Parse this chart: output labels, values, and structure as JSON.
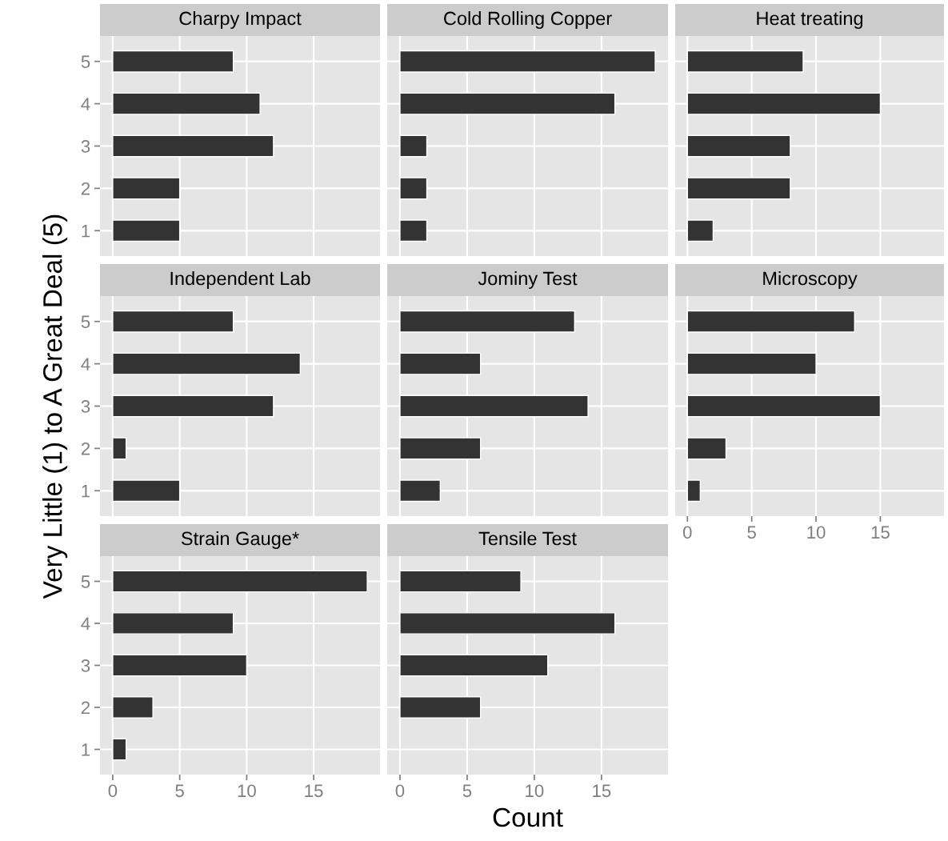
{
  "chart_data": [
    {
      "type": "bar",
      "orientation": "horizontal",
      "title": "Charpy Impact",
      "categories": [
        "5",
        "4",
        "3",
        "2",
        "1"
      ],
      "values": [
        9,
        11,
        12,
        5,
        5
      ],
      "color": "#333333",
      "xlim": [
        -0.95,
        19.95
      ],
      "xticks": [
        0,
        5,
        10,
        15
      ],
      "grid": true,
      "tick_labels": "y"
    },
    {
      "type": "bar",
      "orientation": "horizontal",
      "title": "Cold Rolling Copper",
      "categories": [
        "5",
        "4",
        "3",
        "2",
        "1"
      ],
      "values": [
        19,
        16,
        2,
        2,
        2
      ],
      "color": "#333333",
      "xlim": [
        -0.95,
        19.95
      ],
      "xticks": [
        0,
        5,
        10,
        15
      ],
      "grid": true,
      "tick_labels": false
    },
    {
      "type": "bar",
      "orientation": "horizontal",
      "title": "Heat treating",
      "categories": [
        "5",
        "4",
        "3",
        "2",
        "1"
      ],
      "values": [
        9,
        15,
        8,
        8,
        2
      ],
      "color": "#333333",
      "xlim": [
        -0.95,
        19.95
      ],
      "xticks": [
        0,
        5,
        10,
        15
      ],
      "grid": true,
      "tick_labels": false
    },
    {
      "type": "bar",
      "orientation": "horizontal",
      "title": "Independent Lab",
      "ylabel": "Very Little (1) to A Great Deal (5)",
      "categories": [
        "5",
        "4",
        "3",
        "2",
        "1"
      ],
      "values": [
        9,
        14,
        12,
        1,
        5
      ],
      "color": "#333333",
      "xlim": [
        -0.95,
        19.95
      ],
      "xticks": [
        0,
        5,
        10,
        15
      ],
      "grid": true,
      "tick_labels": "y"
    },
    {
      "type": "bar",
      "orientation": "horizontal",
      "title": "Jominy Test",
      "categories": [
        "5",
        "4",
        "3",
        "2",
        "1"
      ],
      "values": [
        13,
        6,
        14,
        6,
        3
      ],
      "color": "#333333",
      "xlim": [
        -0.95,
        19.95
      ],
      "xticks": [
        0,
        5,
        10,
        15
      ],
      "grid": true,
      "tick_labels": false
    },
    {
      "type": "bar",
      "orientation": "horizontal",
      "title": "Microscopy",
      "categories": [
        "5",
        "4",
        "3",
        "2",
        "1"
      ],
      "values": [
        13,
        10,
        15,
        3,
        1
      ],
      "color": "#333333",
      "xlim": [
        -0.95,
        19.95
      ],
      "xticks": [
        0,
        5,
        10,
        15
      ],
      "grid": true,
      "tick_labels": "x"
    },
    {
      "type": "bar",
      "orientation": "horizontal",
      "title": "Strain Gauge*",
      "categories": [
        "5",
        "4",
        "3",
        "2",
        "1"
      ],
      "values": [
        19,
        9,
        10,
        3,
        1
      ],
      "color": "#333333",
      "xlim": [
        -0.95,
        19.95
      ],
      "xticks": [
        0,
        5,
        10,
        15
      ],
      "grid": true
    },
    {
      "type": "bar",
      "orientation": "horizontal",
      "title": "Tensile Test",
      "xlabel": "Count",
      "categories": [
        "5",
        "4",
        "3",
        "2",
        "1"
      ],
      "values": [
        9,
        16,
        11,
        6,
        null
      ],
      "color": "#333333",
      "xlim": [
        -0.95,
        19.95
      ],
      "xticks": [
        0,
        5,
        10,
        15
      ],
      "grid": true,
      "tick_labels": "x"
    }
  ]
}
